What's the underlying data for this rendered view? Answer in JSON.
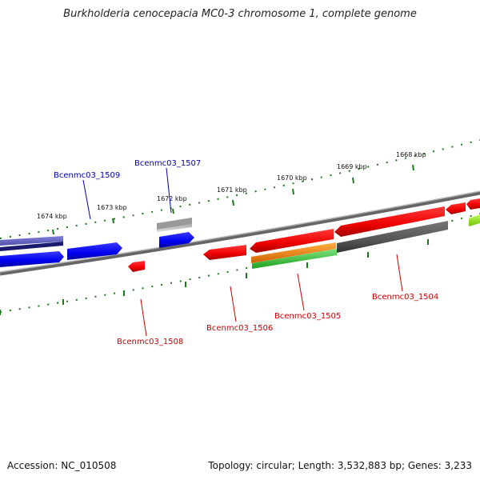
{
  "title": "Burkholderia cenocepacia MC0-3 chromosome 1, complete genome",
  "footer": {
    "accession": "Accession: NC_010508",
    "topology": "Topology: circular; Length: 3,532,883 bp; Genes: 3,233"
  },
  "colors": {
    "forward_gene": "#0000ee",
    "reverse_gene": "#ee0000",
    "forward_label": "#0000aa",
    "reverse_label": "#cc0000",
    "backbone": "#888888",
    "tick_track": "#1a7a1a"
  },
  "scale": {
    "ticks": [
      "1674 kbp",
      "1673 kbp",
      "1672 kbp",
      "1671 kbp",
      "1670 kbp",
      "1669 kbp",
      "1668 kbp"
    ]
  },
  "genes": [
    {
      "id": "Bcenmc03_1509",
      "strand": "forward"
    },
    {
      "id": "Bcenmc03_1507",
      "strand": "forward"
    },
    {
      "id": "Bcenmc03_1508",
      "strand": "reverse"
    },
    {
      "id": "Bcenmc03_1506",
      "strand": "reverse"
    },
    {
      "id": "Bcenmc03_1505",
      "strand": "reverse"
    },
    {
      "id": "Bcenmc03_1504",
      "strand": "reverse"
    }
  ]
}
